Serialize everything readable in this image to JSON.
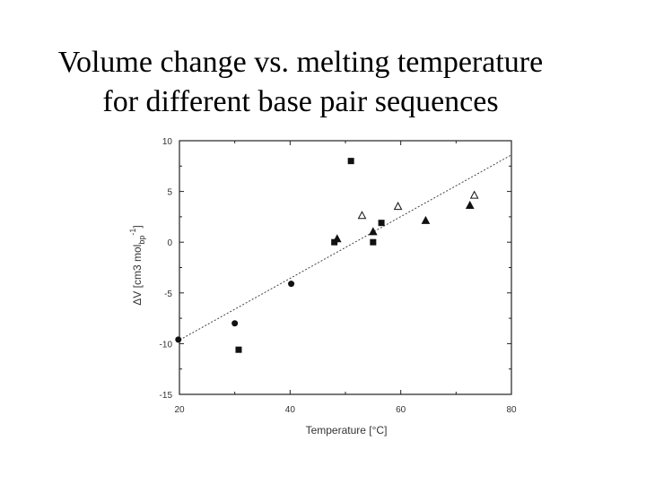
{
  "slide": {
    "title_line1": "Volume change vs. melting temperature",
    "title_line2": "for different base pair sequences"
  },
  "chart_data": {
    "type": "scatter",
    "title": "Volume change vs. melting temperature for different base pair sequences",
    "xlabel": "Temperature [°C]",
    "ylabel_main": "ΔV  [cm3 mol",
    "ylabel_sub": "bp",
    "ylabel_sup": "-1",
    "ylabel_close": "]",
    "xlim": [
      20,
      80
    ],
    "ylim": [
      -15,
      10
    ],
    "x_ticks": [
      20,
      40,
      60,
      80
    ],
    "y_ticks": [
      10,
      5,
      0,
      -5,
      -10,
      -15
    ],
    "grid": false,
    "fit_line": {
      "x": [
        19.5,
        80
      ],
      "y": [
        -9.8,
        8.6
      ]
    },
    "series": [
      {
        "marker": "circle",
        "points": [
          [
            19.8,
            -9.6
          ],
          [
            30,
            -8
          ],
          [
            40.2,
            -4.1
          ]
        ]
      },
      {
        "marker": "square",
        "points": [
          [
            30.7,
            -10.6
          ],
          [
            48,
            0
          ],
          [
            51,
            8
          ],
          [
            55,
            0
          ],
          [
            56.5,
            1.9
          ]
        ]
      },
      {
        "marker": "triangle-filled",
        "points": [
          [
            48.5,
            0.3
          ],
          [
            55,
            1
          ],
          [
            64.5,
            2.1
          ],
          [
            72.5,
            3.6
          ]
        ]
      },
      {
        "marker": "triangle-open",
        "points": [
          [
            53,
            2.6
          ],
          [
            59.5,
            3.5
          ],
          [
            73.3,
            4.6
          ]
        ]
      }
    ]
  }
}
